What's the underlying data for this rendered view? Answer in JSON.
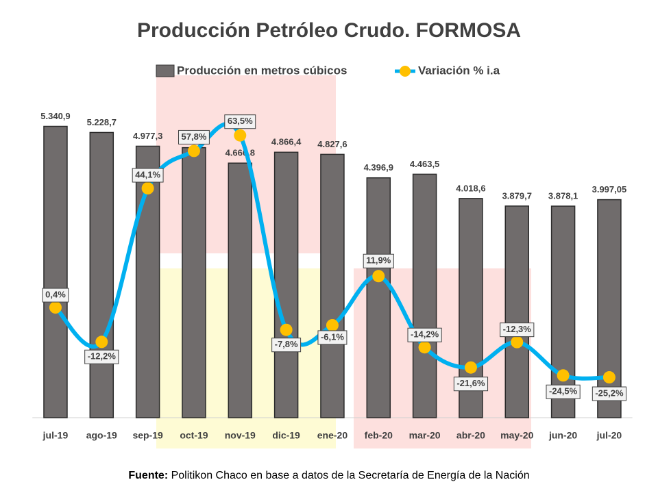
{
  "chart_data": {
    "type": "bar_line",
    "title": "Producción Petróleo Crudo. FORMOSA",
    "categories": [
      "jul-19",
      "ago-19",
      "sep-19",
      "oct-19",
      "nov-19",
      "dic-19",
      "ene-20",
      "feb-20",
      "mar-20",
      "abr-20",
      "may-20",
      "jun-20",
      "jul-20"
    ],
    "series": [
      {
        "name": "Producción en metros cúbicos",
        "type": "bar",
        "color": "#706c6c",
        "values": [
          5340.9,
          5228.7,
          4977.3,
          4950,
          4666.8,
          4866.4,
          4827.6,
          4396.9,
          4463.5,
          4018.6,
          3879.7,
          3878.1,
          3997.05
        ],
        "value_labels": [
          "5.340,9",
          "5.228,7",
          "4.977,3",
          null,
          "4.666,8",
          "4.866,4",
          "4.827,6",
          "4.396,9",
          "4.463,5",
          "4.018,6",
          "3.879,7",
          "3.878,1",
          "3.997,05"
        ]
      },
      {
        "name": "Variación % i.a",
        "type": "line",
        "axis": "y2",
        "color": "#00b0f0",
        "marker_color": "#ffc000",
        "values": [
          0.4,
          -12.2,
          44.1,
          57.8,
          63.5,
          -7.8,
          -6.1,
          11.9,
          -14.2,
          -21.6,
          -12.3,
          -24.5,
          -25.2
        ],
        "value_labels": [
          "0,4%",
          "-12,2%",
          "44,1%",
          "57,8%",
          "63,5%",
          "-7,8%",
          "-6,1%",
          "11,9%",
          "-14,2%",
          "-21,6%",
          "-12,3%",
          "-24,5%",
          "-25,2%"
        ]
      }
    ],
    "ylim": [
      0,
      6000
    ],
    "y2lim": [
      -40,
      80
    ],
    "legend": "top",
    "source_label": "Fuente:",
    "source": "Politikon Chaco en base a datos de la Secretaría de Energía de la Nación"
  }
}
